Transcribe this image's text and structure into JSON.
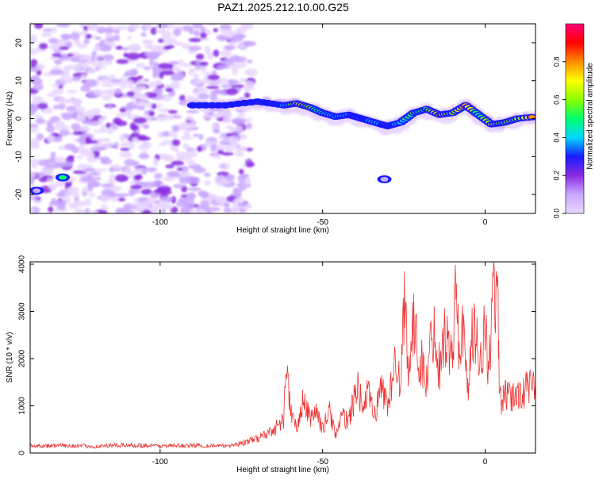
{
  "title": "PAZ1.2025.212.10.00.G25",
  "chart_data": [
    {
      "type": "heatmap",
      "xlabel": "Height of straight line (km)",
      "ylabel": "Frequency (Hz)",
      "xlim": [
        -140,
        15.5
      ],
      "ylim": [
        -25,
        25
      ],
      "xticks": [
        -100,
        -50,
        0
      ],
      "xtick_labels": [
        "-100",
        "-50",
        "0"
      ],
      "yticks": [
        -20,
        -10,
        0,
        10,
        20
      ],
      "ytick_labels": [
        "-20",
        "-10",
        "0",
        "10",
        "20"
      ],
      "colorbar": {
        "label": "Normalized spectral amplitude",
        "range": [
          0,
          1
        ],
        "ticks": [
          0.0,
          0.2,
          0.4,
          0.6,
          0.8
        ],
        "tick_labels": [
          "0.0",
          "0.2",
          "0.4",
          "0.6",
          "0.8"
        ],
        "colormap": [
          "#e8d6ff",
          "#c9a8ff",
          "#8a2be2",
          "#1a1aff",
          "#00d8ff",
          "#00ff6e",
          "#8cff00",
          "#ffff00",
          "#ff8c00",
          "#ff0000",
          "#ff0077"
        ]
      },
      "ridge": {
        "x": [
          -90,
          -80,
          -70,
          -62,
          -58,
          -54,
          -50,
          -46,
          -42,
          -38,
          -34,
          -30,
          -26,
          -22,
          -18,
          -14,
          -10,
          -6,
          -2,
          2,
          6,
          10,
          15.5
        ],
        "y": [
          3.5,
          3.5,
          4.5,
          3.5,
          4,
          3,
          1.5,
          0.5,
          1,
          0,
          -1,
          -2,
          -1,
          1.5,
          2.5,
          1,
          1.5,
          3.5,
          1,
          -1.5,
          -1,
          0,
          0.5
        ],
        "amplitude": [
          0.25,
          0.3,
          0.25,
          0.35,
          0.7,
          0.6,
          0.45,
          0.4,
          0.35,
          0.3,
          0.4,
          0.3,
          0.4,
          0.55,
          0.5,
          0.75,
          0.6,
          0.8,
          0.45,
          0.7,
          0.55,
          0.6,
          0.8
        ]
      },
      "spots": [
        {
          "x": -130,
          "y": -15.5,
          "amplitude": 0.45
        },
        {
          "x": -138,
          "y": -19,
          "amplitude": 0.12
        },
        {
          "x": -31,
          "y": -16,
          "amplitude": 0.1
        }
      ]
    },
    {
      "type": "line",
      "xlabel": "Height of straight line (km)",
      "ylabel": "SNR (10 * v/v)",
      "xlim": [
        -140,
        15.5
      ],
      "ylim": [
        0,
        4050
      ],
      "xticks": [
        -100,
        -50,
        0
      ],
      "xtick_labels": [
        "-100",
        "-50",
        "0"
      ],
      "yticks": [
        0,
        1000,
        2000,
        3000,
        4000
      ],
      "ytick_labels": [
        "0",
        "1000",
        "2000",
        "3000",
        "4000"
      ],
      "color": "#ee3333",
      "series": [
        {
          "x": [
            -140,
            -130,
            -120,
            -110,
            -100,
            -90,
            -80,
            -76,
            -72,
            -68,
            -64,
            -62,
            -61,
            -60,
            -58,
            -56,
            -54,
            -52,
            -50,
            -48,
            -46,
            -44,
            -42,
            -40,
            -39,
            -38,
            -36,
            -34,
            -32,
            -30,
            -28,
            -27,
            -26,
            -25,
            -24.5,
            -24,
            -22,
            -21,
            -20,
            -18,
            -16,
            -14,
            -13,
            -12,
            -10,
            -9,
            -8,
            -7,
            -6,
            -5,
            -4,
            -3,
            -2,
            -1,
            0,
            1,
            2,
            2.5,
            3,
            3.5,
            4,
            4.2,
            4.5,
            6,
            8,
            10,
            12,
            14,
            15.5
          ],
          "y": [
            150,
            160,
            140,
            170,
            150,
            160,
            150,
            190,
            260,
            380,
            560,
            700,
            1980,
            900,
            500,
            1100,
            750,
            900,
            500,
            900,
            400,
            750,
            700,
            1200,
            1600,
            900,
            1250,
            800,
            1400,
            1050,
            1700,
            2100,
            1300,
            3050,
            4050,
            1800,
            2600,
            2300,
            2000,
            1500,
            2700,
            1800,
            2600,
            2400,
            2050,
            3530,
            2200,
            2700,
            1800,
            1500,
            2400,
            2650,
            2000,
            2200,
            2600,
            1800,
            2700,
            3600,
            2900,
            3300,
            2800,
            2400,
            1100,
            1200,
            1150,
            1250,
            1300,
            1400,
            1450
          ]
        }
      ]
    }
  ]
}
